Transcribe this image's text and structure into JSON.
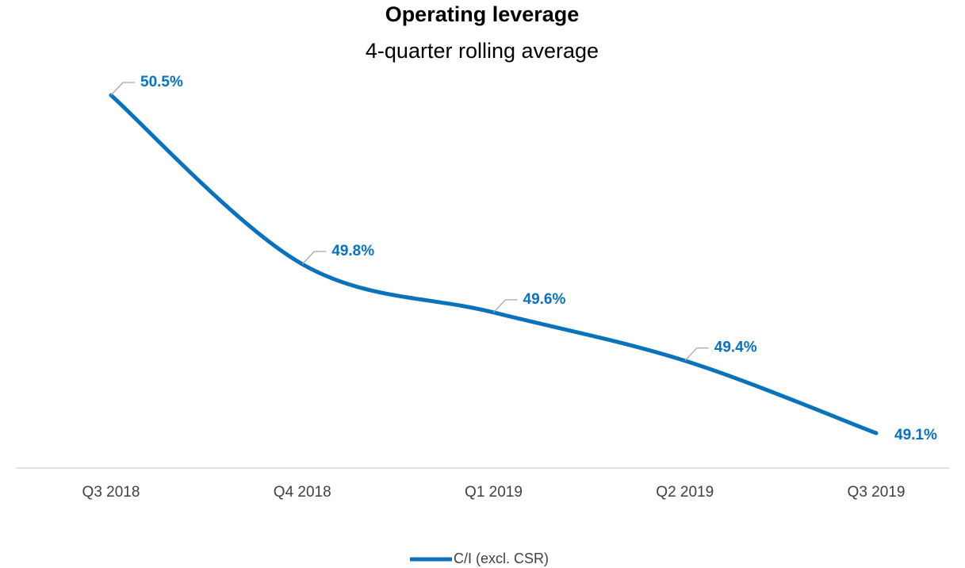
{
  "chart_data": {
    "type": "line",
    "title": "Operating leverage",
    "subtitle": "4-quarter rolling average",
    "categories": [
      "Q3 2018",
      "Q4 2018",
      "Q1 2019",
      "Q2 2019",
      "Q3 2019"
    ],
    "series": [
      {
        "name": "C/I (excl. CSR)",
        "color": "#0a72ba",
        "values": [
          50.5,
          49.8,
          49.6,
          49.4,
          49.1
        ],
        "value_labels": [
          "50.5%",
          "49.8%",
          "49.6%",
          "49.4%",
          "49.1%"
        ]
      }
    ],
    "legend": "bottom"
  }
}
